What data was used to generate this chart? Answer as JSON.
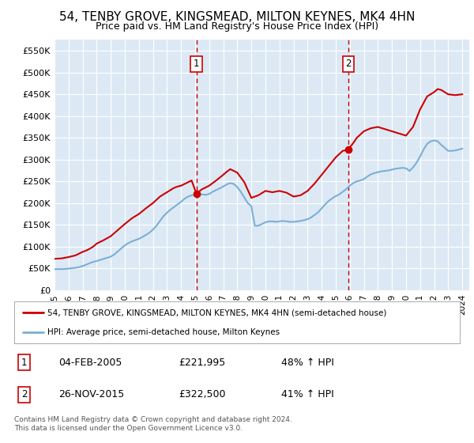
{
  "title": "54, TENBY GROVE, KINGSMEAD, MILTON KEYNES, MK4 4HN",
  "subtitle": "Price paid vs. HM Land Registry's House Price Index (HPI)",
  "title_fontsize": 11,
  "subtitle_fontsize": 9,
  "background_color": "#ffffff",
  "plot_bg_color": "#dce9f5",
  "grid_color": "#ffffff",
  "ylim": [
    0,
    575000
  ],
  "yticks": [
    0,
    50000,
    100000,
    150000,
    200000,
    250000,
    300000,
    350000,
    400000,
    450000,
    500000,
    550000
  ],
  "ytick_labels": [
    "£0",
    "£50K",
    "£100K",
    "£150K",
    "£200K",
    "£250K",
    "£300K",
    "£350K",
    "£400K",
    "£450K",
    "£500K",
    "£550K"
  ],
  "xlim_start": 1995.0,
  "xlim_end": 2024.5,
  "hpi_line_color": "#7bafd4",
  "price_line_color": "#cc0000",
  "marker1_x": 2005.09,
  "marker1_y": 221995,
  "marker1_label": "1",
  "marker1_date": "04-FEB-2005",
  "marker1_price": "£221,995",
  "marker1_pct": "48% ↑ HPI",
  "marker2_x": 2015.9,
  "marker2_y": 322500,
  "marker2_label": "2",
  "marker2_date": "26-NOV-2015",
  "marker2_price": "£322,500",
  "marker2_pct": "41% ↑ HPI",
  "vline_color": "#cc0000",
  "legend_line1": "54, TENBY GROVE, KINGSMEAD, MILTON KEYNES, MK4 4HN (semi-detached house)",
  "legend_line2": "HPI: Average price, semi-detached house, Milton Keynes",
  "footnote": "Contains HM Land Registry data © Crown copyright and database right 2024.\nThis data is licensed under the Open Government Licence v3.0.",
  "hpi_data_x": [
    1995.0,
    1995.25,
    1995.5,
    1995.75,
    1996.0,
    1996.25,
    1996.5,
    1996.75,
    1997.0,
    1997.25,
    1997.5,
    1997.75,
    1998.0,
    1998.25,
    1998.5,
    1998.75,
    1999.0,
    1999.25,
    1999.5,
    1999.75,
    2000.0,
    2000.25,
    2000.5,
    2000.75,
    2001.0,
    2001.25,
    2001.5,
    2001.75,
    2002.0,
    2002.25,
    2002.5,
    2002.75,
    2003.0,
    2003.25,
    2003.5,
    2003.75,
    2004.0,
    2004.25,
    2004.5,
    2004.75,
    2005.0,
    2005.25,
    2005.5,
    2005.75,
    2006.0,
    2006.25,
    2006.5,
    2006.75,
    2007.0,
    2007.25,
    2007.5,
    2007.75,
    2008.0,
    2008.25,
    2008.5,
    2008.75,
    2009.0,
    2009.25,
    2009.5,
    2009.75,
    2010.0,
    2010.25,
    2010.5,
    2010.75,
    2011.0,
    2011.25,
    2011.5,
    2011.75,
    2012.0,
    2012.25,
    2012.5,
    2012.75,
    2013.0,
    2013.25,
    2013.5,
    2013.75,
    2014.0,
    2014.25,
    2014.5,
    2014.75,
    2015.0,
    2015.25,
    2015.5,
    2015.75,
    2016.0,
    2016.25,
    2016.5,
    2016.75,
    2017.0,
    2017.25,
    2017.5,
    2017.75,
    2018.0,
    2018.25,
    2018.5,
    2018.75,
    2019.0,
    2019.25,
    2019.5,
    2019.75,
    2020.0,
    2020.25,
    2020.5,
    2020.75,
    2021.0,
    2021.25,
    2021.5,
    2021.75,
    2022.0,
    2022.25,
    2022.5,
    2022.75,
    2023.0,
    2023.25,
    2023.5,
    2023.75,
    2024.0
  ],
  "hpi_data_y": [
    48000,
    48500,
    48200,
    48800,
    49500,
    50500,
    51500,
    53000,
    55500,
    58500,
    62000,
    65000,
    67000,
    69500,
    72000,
    74500,
    77000,
    82000,
    89000,
    96000,
    103000,
    108000,
    112000,
    115000,
    118000,
    122000,
    127000,
    132000,
    139000,
    148000,
    159000,
    170000,
    178000,
    185000,
    191000,
    197000,
    203000,
    210000,
    215000,
    218000,
    219000,
    220000,
    220000,
    219000,
    221000,
    226000,
    230000,
    234000,
    238000,
    243000,
    246000,
    244000,
    237000,
    226000,
    213000,
    200000,
    193000,
    148000,
    148000,
    152000,
    156000,
    158000,
    158000,
    157000,
    158000,
    159000,
    158000,
    157000,
    157000,
    158000,
    159000,
    161000,
    163000,
    167000,
    173000,
    179000,
    188000,
    197000,
    205000,
    211000,
    216000,
    220000,
    226000,
    232000,
    240000,
    246000,
    250000,
    252000,
    255000,
    261000,
    266000,
    269000,
    271000,
    273000,
    274000,
    275000,
    277000,
    279000,
    280000,
    281000,
    280000,
    274000,
    282000,
    293000,
    307000,
    323000,
    336000,
    342000,
    344000,
    342000,
    334000,
    327000,
    320000,
    320000,
    321000,
    323000,
    325000
  ],
  "price_data_x": [
    1995.0,
    1995.5,
    1996.0,
    1996.5,
    1997.0,
    1997.25,
    1997.5,
    1997.75,
    1998.0,
    1998.5,
    1999.0,
    1999.5,
    2000.0,
    2000.5,
    2001.0,
    2001.5,
    2002.0,
    2002.5,
    2003.0,
    2003.25,
    2003.5,
    2003.75,
    2004.0,
    2004.25,
    2004.5,
    2004.75,
    2005.09,
    2005.5,
    2006.0,
    2006.5,
    2007.0,
    2007.25,
    2007.5,
    2008.0,
    2008.5,
    2009.0,
    2009.25,
    2009.5,
    2010.0,
    2010.5,
    2011.0,
    2011.5,
    2012.0,
    2012.5,
    2013.0,
    2013.5,
    2014.0,
    2014.5,
    2015.0,
    2015.5,
    2015.9,
    2016.0,
    2016.25,
    2016.5,
    2017.0,
    2017.5,
    2018.0,
    2018.5,
    2019.0,
    2019.5,
    2020.0,
    2020.5,
    2021.0,
    2021.5,
    2022.0,
    2022.25,
    2022.5,
    2023.0,
    2023.5,
    2024.0
  ],
  "price_data_y": [
    72000,
    73000,
    76000,
    80000,
    88000,
    91000,
    95000,
    100000,
    107000,
    115000,
    124000,
    138000,
    152000,
    165000,
    175000,
    188000,
    200000,
    215000,
    225000,
    230000,
    235000,
    238000,
    240000,
    244000,
    248000,
    252000,
    221995,
    232000,
    240000,
    252000,
    265000,
    272000,
    278000,
    270000,
    248000,
    212000,
    215000,
    218000,
    228000,
    225000,
    228000,
    224000,
    215000,
    218000,
    228000,
    245000,
    265000,
    285000,
    305000,
    320000,
    322500,
    328000,
    338000,
    350000,
    365000,
    372000,
    375000,
    370000,
    365000,
    360000,
    355000,
    375000,
    415000,
    445000,
    455000,
    462000,
    460000,
    450000,
    448000,
    450000
  ]
}
